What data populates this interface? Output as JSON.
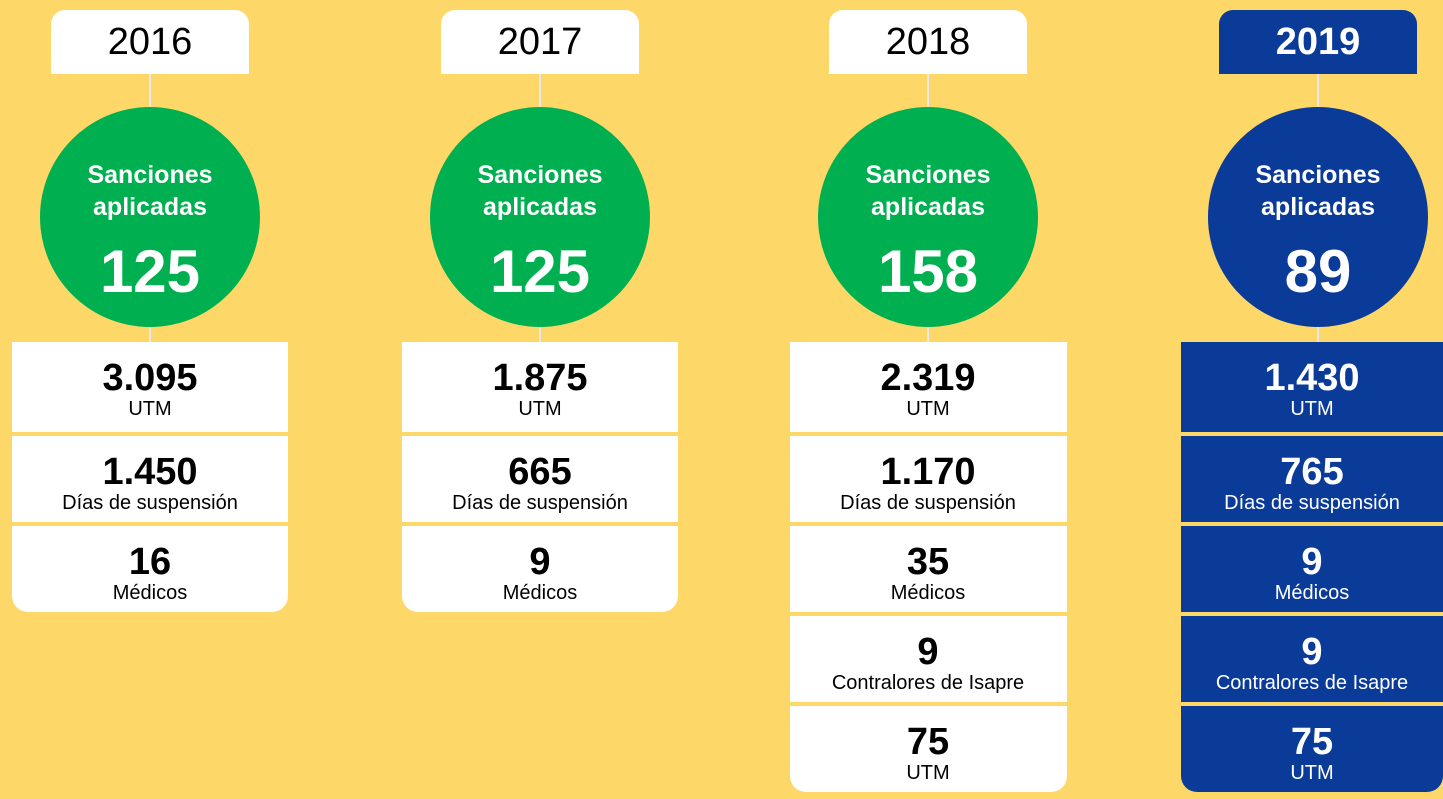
{
  "columns": [
    {
      "year": "2016",
      "label": "Sanciones aplicadas",
      "total": "125",
      "color": "#00b050",
      "highlight": false,
      "items": [
        {
          "value": "3.095",
          "unit": "UTM"
        },
        {
          "value": "1.450",
          "unit": "Días de suspensión"
        },
        {
          "value": "16",
          "unit": "Médicos"
        }
      ]
    },
    {
      "year": "2017",
      "label": "Sanciones aplicadas",
      "total": "125",
      "color": "#00b050",
      "highlight": false,
      "items": [
        {
          "value": "1.875",
          "unit": "UTM"
        },
        {
          "value": "665",
          "unit": "Días de suspensión"
        },
        {
          "value": "9",
          "unit": "Médicos"
        }
      ]
    },
    {
      "year": "2018",
      "label": "Sanciones aplicadas",
      "total": "158",
      "color": "#00b050",
      "highlight": false,
      "items": [
        {
          "value": "2.319",
          "unit": "UTM"
        },
        {
          "value": "1.170",
          "unit": "Días de suspensión"
        },
        {
          "value": "35",
          "unit": "Médicos"
        },
        {
          "value": "9",
          "unit": "Contralores de Isapre"
        },
        {
          "value": "75",
          "unit": "UTM"
        }
      ]
    },
    {
      "year": "2019",
      "label": "Sanciones aplicadas",
      "total": "89",
      "color": "#0b3b98",
      "highlight": true,
      "items": [
        {
          "value": "1.430",
          "unit": "UTM"
        },
        {
          "value": "765",
          "unit": "Días de suspensión"
        },
        {
          "value": "9",
          "unit": "Médicos"
        },
        {
          "value": "9",
          "unit": "Contralores de Isapre"
        },
        {
          "value": "75",
          "unit": "UTM"
        }
      ]
    }
  ]
}
